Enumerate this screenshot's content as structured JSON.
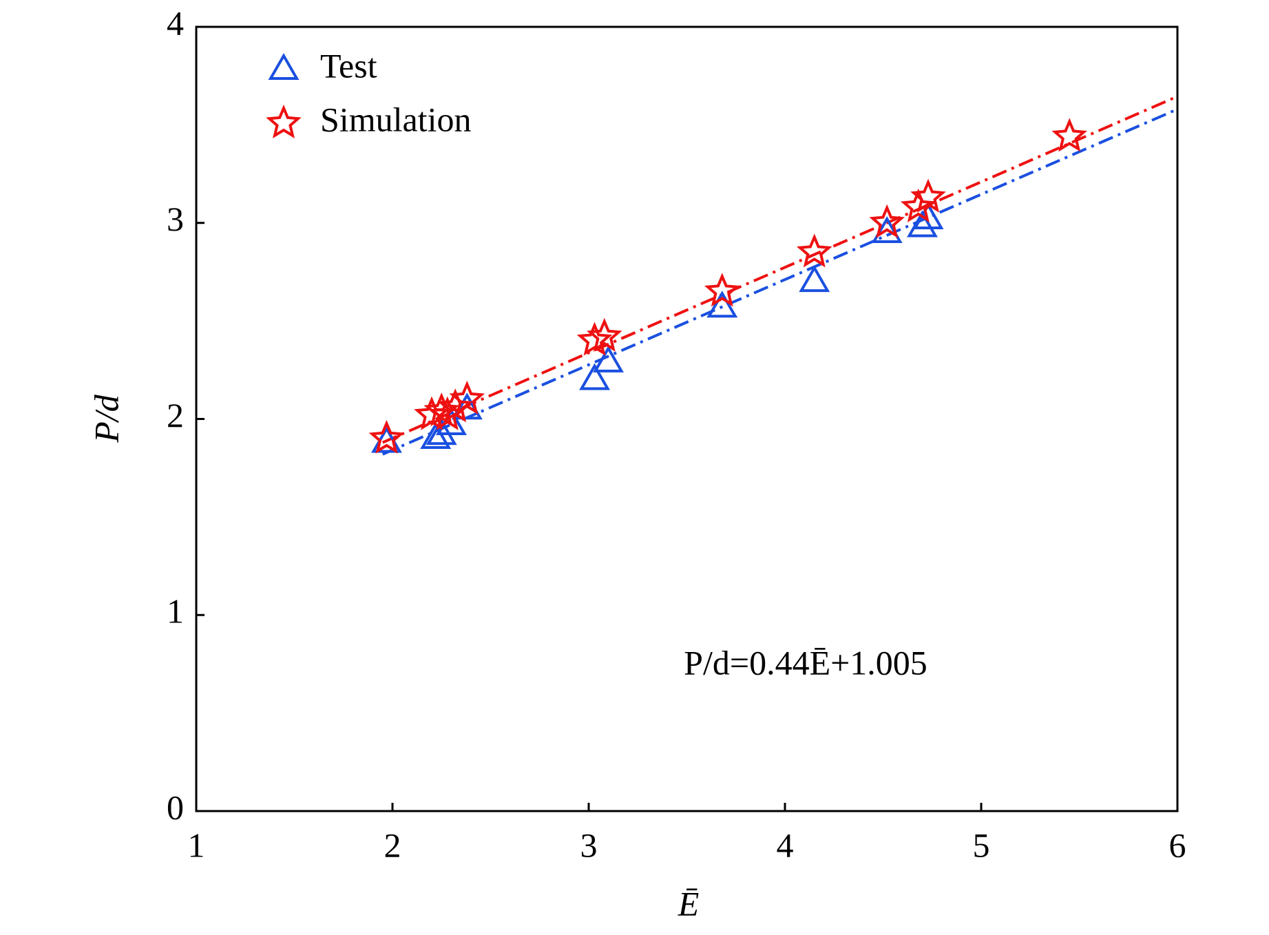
{
  "chart_data": {
    "type": "scatter",
    "x_label": "Ē",
    "y_label": "P/d",
    "annotation": "P/d=0.44Ē+1.005",
    "xlim": [
      1,
      6
    ],
    "xticks": [
      1,
      2,
      3,
      4,
      5,
      6
    ],
    "ylim": [
      0,
      4
    ],
    "yticks": [
      0,
      1,
      2,
      3,
      4
    ],
    "legend": "top-left",
    "series": [
      {
        "name": "Test",
        "color": "#1a4fe0",
        "marker": "triangle",
        "x": [
          1.97,
          2.22,
          2.25,
          2.3,
          2.38,
          3.03,
          3.1,
          3.68,
          4.15,
          4.52,
          4.7,
          4.73
        ],
        "values": [
          1.88,
          1.9,
          1.92,
          1.97,
          2.05,
          2.2,
          2.29,
          2.57,
          2.7,
          2.95,
          2.98,
          3.02
        ]
      },
      {
        "name": "Simulation",
        "color": "#ee1111",
        "marker": "star",
        "x": [
          1.97,
          2.2,
          2.25,
          2.28,
          2.32,
          2.38,
          3.03,
          3.08,
          3.68,
          4.15,
          4.52,
          4.68,
          4.73,
          5.45
        ],
        "values": [
          1.9,
          2.02,
          2.04,
          2.02,
          2.06,
          2.1,
          2.4,
          2.42,
          2.65,
          2.85,
          3.0,
          3.08,
          3.13,
          3.44
        ]
      }
    ],
    "fits": [
      {
        "color": "#1a4fe0",
        "x": [
          1.95,
          6
        ],
        "values": [
          1.82,
          3.58
        ]
      },
      {
        "color": "#ee1111",
        "x": [
          1.95,
          6
        ],
        "values": [
          1.88,
          3.645
        ]
      }
    ]
  }
}
